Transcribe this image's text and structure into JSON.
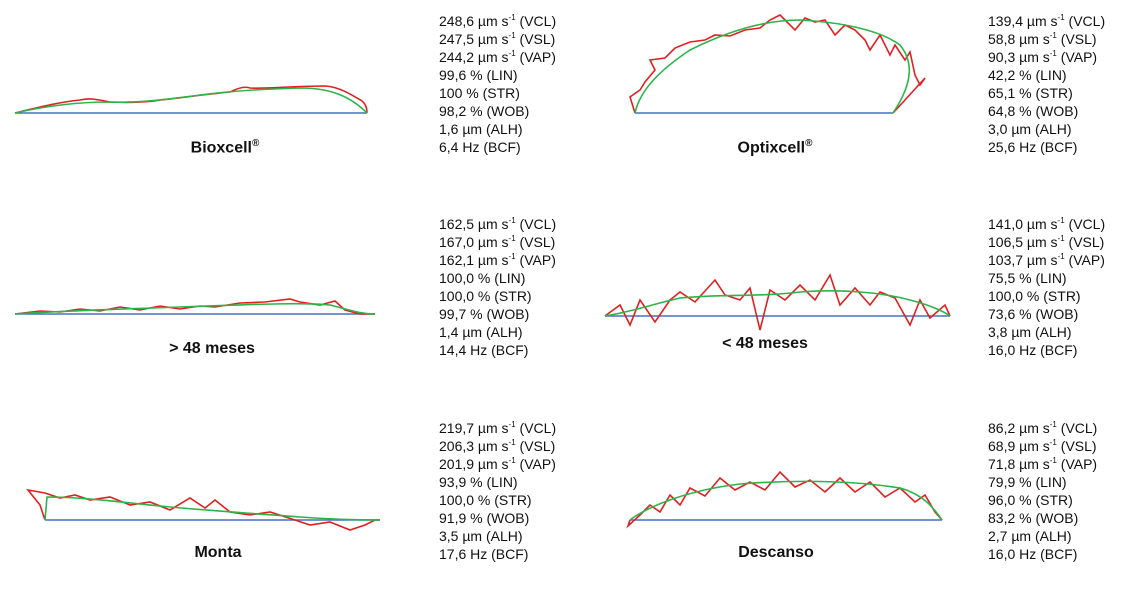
{
  "colors": {
    "straight_path": "#4472c4",
    "average_path": "#2db34a",
    "curvilinear_path": "#e02020"
  },
  "panels": [
    {
      "name": "Bioxcell",
      "sup": "®",
      "stats": [
        {
          "v": "248,6 µm s",
          "s": "-1",
          "p": " (VCL)"
        },
        {
          "v": "247,5 µm s",
          "s": "-1",
          "p": " (VSL)"
        },
        {
          "v": "244,2 µm s",
          "s": "-1",
          "p": " (VAP)"
        },
        {
          "v": "99,6 % (LIN)"
        },
        {
          "v": "100 % (STR)"
        },
        {
          "v": "98,2 % (WOB)"
        },
        {
          "v": "1,6 µm (ALH)"
        },
        {
          "v": "6,4 Hz (BCF)"
        }
      ]
    },
    {
      "name": "Optixcell",
      "sup": "®",
      "stats": [
        {
          "v": "139,4 µm s",
          "s": "-1",
          "p": " (VCL)"
        },
        {
          "v": "58,8 µm s",
          "s": "-1",
          "p": " (VSL)"
        },
        {
          "v": "90,3 µm s",
          "s": "-1",
          "p": " (VAP)"
        },
        {
          "v": "42,2 % (LIN)"
        },
        {
          "v": "65,1 % (STR)"
        },
        {
          "v": "64,8 % (WOB)"
        },
        {
          "v": "3,0 µm (ALH)"
        },
        {
          "v": "25,6 Hz (BCF)"
        }
      ]
    },
    {
      "name": "> 48 meses",
      "stats": [
        {
          "v": "162,5 µm s",
          "s": "-1",
          "p": " (VCL)"
        },
        {
          "v": "167,0 µm s",
          "s": "-1",
          "p": " (VSL)"
        },
        {
          "v": "162,1 µm s",
          "s": "-1",
          "p": " (VAP)"
        },
        {
          "v": "100,0 % (LIN)"
        },
        {
          "v": "100,0 % (STR)"
        },
        {
          "v": "99,7 % (WOB)"
        },
        {
          "v": "1,4 µm (ALH)"
        },
        {
          "v": "14,4 Hz (BCF)"
        }
      ]
    },
    {
      "name": "< 48 meses",
      "stats": [
        {
          "v": "141,0 µm s",
          "s": "-1",
          "p": " (VCL)"
        },
        {
          "v": "106,5 µm s",
          "s": "-1",
          "p": " (VSL)"
        },
        {
          "v": "103,7 µm s",
          "s": "-1",
          "p": " (VAP)"
        },
        {
          "v": "75,5 % (LIN)"
        },
        {
          "v": "100,0 % (STR)"
        },
        {
          "v": "73,6 % (WOB)"
        },
        {
          "v": "3,8 µm (ALH)"
        },
        {
          "v": "16,0 Hz (BCF)"
        }
      ]
    },
    {
      "name": "Monta",
      "stats": [
        {
          "v": "219,7 µm s",
          "s": "-1",
          "p": " (VCL)"
        },
        {
          "v": "206,3 µm s",
          "s": "-1",
          "p": " (VSL)"
        },
        {
          "v": "201,9 µm s",
          "s": "-1",
          "p": " (VAP)"
        },
        {
          "v": "93,9 % (LIN)"
        },
        {
          "v": "100,0 % (STR)"
        },
        {
          "v": "91,9 % (WOB)"
        },
        {
          "v": "3,5 µm (ALH)"
        },
        {
          "v": "17,6 Hz (BCF)"
        }
      ]
    },
    {
      "name": "Descanso",
      "stats": [
        {
          "v": "86,2 µm s",
          "s": "-1",
          "p": " (VCL)"
        },
        {
          "v": "68,9 µm s",
          "s": "-1",
          "p": " (VSL)"
        },
        {
          "v": "71,8 µm s",
          "s": "-1",
          "p": " (VAP)"
        },
        {
          "v": "79,9 % (LIN)"
        },
        {
          "v": "96,0 % (STR)"
        },
        {
          "v": "83,2 % (WOB)"
        },
        {
          "v": "2,7 µm (ALH)"
        },
        {
          "v": "16,0 Hz (BCF)"
        }
      ]
    }
  ]
}
